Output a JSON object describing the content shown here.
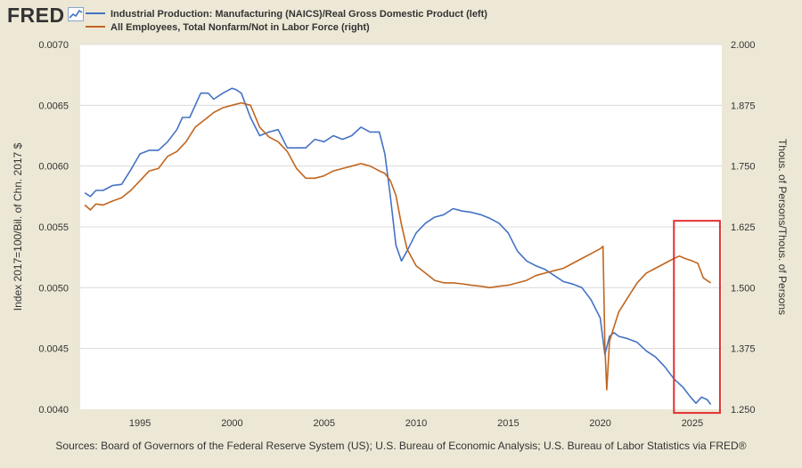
{
  "header": {
    "logo": "FRED",
    "legend": [
      {
        "label": "Industrial Production: Manufacturing (NAICS)/Real Gross Domestic Product (left)",
        "color": "#4472c4"
      },
      {
        "label": "All Employees, Total Nonfarm/Not in Labor Force (right)",
        "color": "#c0651e"
      }
    ]
  },
  "source_text": "Sources: Board of Governors of the Federal Reserve System (US); U.S. Bureau of Economic Analysis; U.S. Bureau of Labor Statistics via FRED®",
  "chart_data": {
    "type": "line",
    "title": "",
    "xlabel": "",
    "ylabel_left": "Index 2017=100/Bil. of Chn. 2017 $",
    "ylabel_right": "Thous. of Persons/Thous. of Persons",
    "xlim": [
      1991.75,
      2026.6
    ],
    "ylim_left": [
      0.004,
      0.007
    ],
    "ylim_right": [
      1.25,
      2.0
    ],
    "x_ticks": [
      1995,
      2000,
      2005,
      2010,
      2015,
      2020,
      2025
    ],
    "x_tick_labels": [
      "1995",
      "2000",
      "2005",
      "2010",
      "2015",
      "2020",
      "2025"
    ],
    "y_left_ticks": [
      0.004,
      0.0045,
      0.005,
      0.0055,
      0.006,
      0.0065,
      0.007
    ],
    "y_left_tick_labels": [
      "0.0040",
      "0.0045",
      "0.0050",
      "0.0055",
      "0.0060",
      "0.0065",
      "0.0070"
    ],
    "y_right_ticks": [
      1.25,
      1.375,
      1.5,
      1.625,
      1.75,
      1.875,
      2.0
    ],
    "y_right_tick_labels": [
      "1.250",
      "1.375",
      "1.500",
      "1.625",
      "1.750",
      "1.875",
      "2.000"
    ],
    "grid": true,
    "highlight_box": {
      "x_range": [
        2024.0,
        2026.5
      ],
      "y_left_range": [
        0.00397,
        0.00555
      ],
      "color": "#e03030"
    },
    "series": [
      {
        "name": "Industrial Production: Manufacturing (NAICS)/Real Gross Domestic Product",
        "axis": "left",
        "color": "#4472c4",
        "x": [
          1992.0,
          1992.3,
          1992.6,
          1993.0,
          1993.5,
          1994.0,
          1994.5,
          1995.0,
          1995.5,
          1996.0,
          1996.5,
          1997.0,
          1997.3,
          1997.7,
          1998.0,
          1998.3,
          1998.7,
          1999.0,
          1999.5,
          2000.0,
          2000.2,
          2000.5,
          2000.8,
          2001.0,
          2001.5,
          2002.0,
          2002.5,
          2003.0,
          2003.5,
          2004.0,
          2004.5,
          2005.0,
          2005.5,
          2006.0,
          2006.5,
          2007.0,
          2007.5,
          2008.0,
          2008.3,
          2008.6,
          2008.9,
          2009.2,
          2009.5,
          2010.0,
          2010.5,
          2011.0,
          2011.5,
          2012.0,
          2012.5,
          2013.0,
          2013.5,
          2014.0,
          2014.5,
          2015.0,
          2015.5,
          2016.0,
          2016.5,
          2017.0,
          2017.5,
          2018.0,
          2018.5,
          2019.0,
          2019.5,
          2020.0,
          2020.25,
          2020.5,
          2020.75,
          2021.0,
          2021.5,
          2022.0,
          2022.5,
          2023.0,
          2023.5,
          2024.0,
          2024.5,
          2024.9,
          2025.2,
          2025.5,
          2025.8,
          2026.0
        ],
        "values": [
          0.00578,
          0.00575,
          0.0058,
          0.0058,
          0.00584,
          0.00585,
          0.00597,
          0.0061,
          0.00613,
          0.00613,
          0.0062,
          0.0063,
          0.0064,
          0.0064,
          0.0065,
          0.0066,
          0.0066,
          0.00655,
          0.0066,
          0.00664,
          0.00663,
          0.0066,
          0.00648,
          0.0064,
          0.00625,
          0.00628,
          0.0063,
          0.00615,
          0.00615,
          0.00615,
          0.00622,
          0.0062,
          0.00625,
          0.00622,
          0.00625,
          0.00632,
          0.00628,
          0.00628,
          0.0061,
          0.00575,
          0.00535,
          0.00522,
          0.0053,
          0.00545,
          0.00553,
          0.00558,
          0.0056,
          0.00565,
          0.00563,
          0.00562,
          0.0056,
          0.00557,
          0.00553,
          0.00545,
          0.0053,
          0.00522,
          0.00518,
          0.00515,
          0.0051,
          0.00505,
          0.00503,
          0.005,
          0.0049,
          0.00475,
          0.00445,
          0.0046,
          0.00463,
          0.0046,
          0.00458,
          0.00455,
          0.00448,
          0.00443,
          0.00435,
          0.00425,
          0.00418,
          0.0041,
          0.00405,
          0.0041,
          0.00408,
          0.00404
        ]
      },
      {
        "name": "All Employees, Total Nonfarm/Not in Labor Force",
        "axis": "right",
        "color": "#c0651e",
        "x": [
          1992.0,
          1992.3,
          1992.6,
          1993.0,
          1993.5,
          1994.0,
          1994.5,
          1995.0,
          1995.5,
          1996.0,
          1996.5,
          1997.0,
          1997.5,
          1998.0,
          1998.5,
          1999.0,
          1999.5,
          2000.0,
          2000.5,
          2001.0,
          2001.5,
          2002.0,
          2002.5,
          2003.0,
          2003.5,
          2004.0,
          2004.5,
          2005.0,
          2005.5,
          2006.0,
          2006.5,
          2007.0,
          2007.5,
          2008.0,
          2008.3,
          2008.6,
          2008.9,
          2009.2,
          2009.5,
          2010.0,
          2010.5,
          2011.0,
          2011.5,
          2012.0,
          2012.5,
          2013.0,
          2013.5,
          2014.0,
          2014.5,
          2015.0,
          2015.5,
          2016.0,
          2016.5,
          2017.0,
          2017.5,
          2018.0,
          2018.5,
          2019.0,
          2019.5,
          2020.0,
          2020.15,
          2020.25,
          2020.35,
          2020.5,
          2020.75,
          2021.0,
          2021.5,
          2022.0,
          2022.5,
          2023.0,
          2023.5,
          2024.0,
          2024.3,
          2024.6,
          2025.0,
          2025.3,
          2025.6,
          2026.0
        ],
        "values": [
          1.67,
          1.66,
          1.672,
          1.67,
          1.678,
          1.685,
          1.7,
          1.72,
          1.74,
          1.745,
          1.77,
          1.78,
          1.8,
          1.83,
          1.845,
          1.86,
          1.87,
          1.875,
          1.88,
          1.875,
          1.83,
          1.81,
          1.8,
          1.78,
          1.745,
          1.725,
          1.725,
          1.73,
          1.74,
          1.745,
          1.75,
          1.755,
          1.75,
          1.74,
          1.735,
          1.72,
          1.69,
          1.63,
          1.58,
          1.545,
          1.53,
          1.515,
          1.51,
          1.51,
          1.508,
          1.505,
          1.503,
          1.5,
          1.503,
          1.505,
          1.51,
          1.515,
          1.525,
          1.53,
          1.535,
          1.54,
          1.55,
          1.56,
          1.57,
          1.58,
          1.585,
          1.38,
          1.29,
          1.39,
          1.42,
          1.45,
          1.48,
          1.51,
          1.53,
          1.54,
          1.55,
          1.56,
          1.565,
          1.56,
          1.555,
          1.55,
          1.52,
          1.51
        ]
      }
    ]
  }
}
